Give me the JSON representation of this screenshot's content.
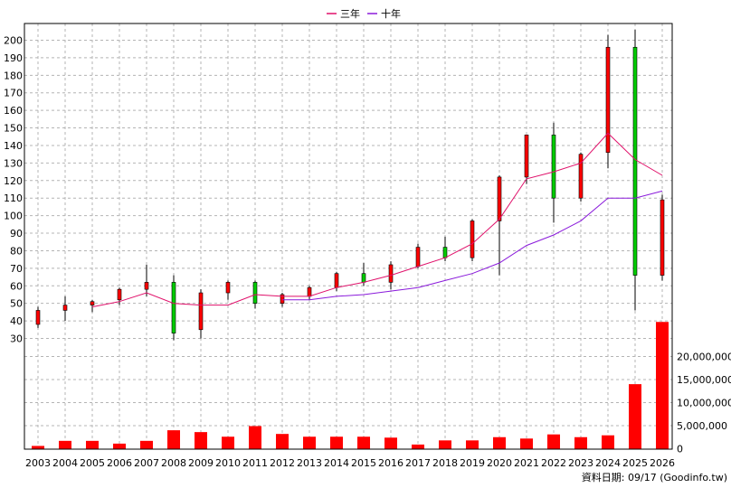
{
  "legend": {
    "ma3_label": "三年",
    "ma10_label": "十年",
    "ma3_color": "#e0106a",
    "ma10_color": "#8a1adb"
  },
  "footer": {
    "source_text": "資料日期: 09/17  (Goodinfo.tw)"
  },
  "chart_data": [
    {
      "type": "candlestick",
      "categories": [
        "2003",
        "2004",
        "2005",
        "2006",
        "2007",
        "2008",
        "2009",
        "2010",
        "2011",
        "2012",
        "2013",
        "2014",
        "2015",
        "2016",
        "2017",
        "2018",
        "2019",
        "2020",
        "2021",
        "2022",
        "2023",
        "2024",
        "2025",
        "2026"
      ],
      "ylim": [
        30,
        200
      ],
      "yticks": [
        30,
        40,
        50,
        60,
        70,
        80,
        90,
        100,
        110,
        120,
        130,
        140,
        150,
        160,
        170,
        180,
        190,
        200
      ],
      "grid": true,
      "legend_position": "top-center",
      "up_color": "#ff0000",
      "down_color": "#00cc00",
      "ohlc": [
        {
          "open": 38,
          "high": 48,
          "low": 36,
          "close": 46
        },
        {
          "open": 46,
          "high": 54,
          "low": 40,
          "close": 49
        },
        {
          "open": 49,
          "high": 52,
          "low": 45,
          "close": 51
        },
        {
          "open": 52,
          "high": 59,
          "low": 49,
          "close": 58
        },
        {
          "open": 58,
          "high": 72,
          "low": 54,
          "close": 62
        },
        {
          "open": 62,
          "high": 66,
          "low": 29,
          "close": 33
        },
        {
          "open": 35,
          "high": 58,
          "low": 30,
          "close": 56
        },
        {
          "open": 56,
          "high": 63,
          "low": 52,
          "close": 62
        },
        {
          "open": 62,
          "high": 63,
          "low": 47,
          "close": 50
        },
        {
          "open": 50,
          "high": 56,
          "low": 48,
          "close": 55
        },
        {
          "open": 54,
          "high": 60,
          "low": 52,
          "close": 59
        },
        {
          "open": 59,
          "high": 68,
          "low": 57,
          "close": 67
        },
        {
          "open": 67,
          "high": 73,
          "low": 60,
          "close": 62
        },
        {
          "open": 62,
          "high": 74,
          "low": 58,
          "close": 72
        },
        {
          "open": 71,
          "high": 84,
          "low": 70,
          "close": 82
        },
        {
          "open": 82,
          "high": 88,
          "low": 74,
          "close": 76
        },
        {
          "open": 76,
          "high": 98,
          "low": 74,
          "close": 97
        },
        {
          "open": 97,
          "high": 123,
          "low": 66,
          "close": 122
        },
        {
          "open": 122,
          "high": 146,
          "low": 118,
          "close": 146
        },
        {
          "open": 146,
          "high": 153,
          "low": 96,
          "close": 110
        },
        {
          "open": 110,
          "high": 136,
          "low": 108,
          "close": 135
        },
        {
          "open": 136,
          "high": 203,
          "low": 127,
          "close": 196
        },
        {
          "open": 196,
          "high": 206,
          "low": 46,
          "close": 66
        },
        {
          "open": 66,
          "high": 112,
          "low": 63,
          "close": 109
        }
      ],
      "series": [
        {
          "name": "三年",
          "values": [
            null,
            null,
            48,
            51,
            56,
            50,
            49,
            49,
            55,
            54,
            54,
            59,
            62,
            66,
            71,
            76,
            84,
            98,
            121,
            125,
            130,
            147,
            132,
            123
          ]
        },
        {
          "name": "十年",
          "values": [
            null,
            null,
            null,
            null,
            null,
            null,
            null,
            null,
            null,
            52,
            52,
            54,
            55,
            57,
            59,
            63,
            67,
            73,
            83,
            89,
            97,
            110,
            110,
            114
          ]
        }
      ]
    },
    {
      "type": "bar",
      "categories": [
        "2003",
        "2004",
        "2005",
        "2006",
        "2007",
        "2008",
        "2009",
        "2010",
        "2011",
        "2012",
        "2013",
        "2014",
        "2015",
        "2016",
        "2017",
        "2018",
        "2019",
        "2020",
        "2021",
        "2022",
        "2023",
        "2024",
        "2025",
        "2026"
      ],
      "values": [
        600000,
        1700000,
        1700000,
        1100000,
        1700000,
        4000000,
        3600000,
        2600000,
        4900000,
        3200000,
        2600000,
        2600000,
        2600000,
        2400000,
        900000,
        1800000,
        1800000,
        2500000,
        2200000,
        3100000,
        2500000,
        2900000,
        14000000,
        27500000
      ],
      "ylim": [
        0,
        25000000
      ],
      "yticks": [
        0,
        5000000,
        10000000,
        15000000,
        20000000
      ],
      "ytick_labels": [
        "0",
        "5,000,000",
        "10,000,000",
        "15,000,000",
        "20,000,000"
      ],
      "color": "#ff0000"
    }
  ]
}
